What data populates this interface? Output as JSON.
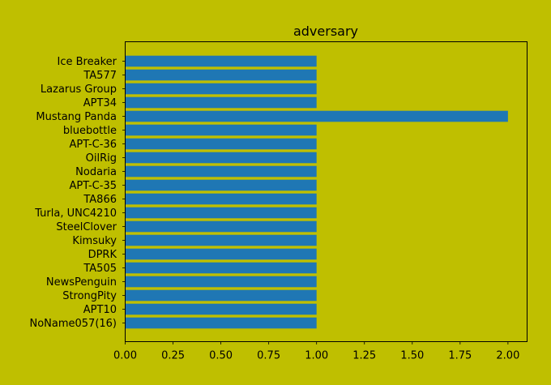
{
  "colors": {
    "background": "#bfbf00",
    "bar": "#1f77b4",
    "axes": "#000000"
  },
  "chart_data": {
    "type": "bar",
    "orientation": "horizontal",
    "title": "adversary",
    "xlabel": "",
    "ylabel": "",
    "categories": [
      "Ice Breaker",
      "TA577",
      "Lazarus Group",
      "APT34",
      "Mustang Panda",
      "bluebottle",
      "APT-C-36",
      "OilRig",
      "Nodaria",
      "APT-C-35",
      "TA866",
      "Turla, UNC4210",
      "SteelClover",
      "Kimsuky",
      "DPRK",
      "TA505",
      "NewsPenguin",
      "StrongPity",
      "APT10",
      "NoName057(16)"
    ],
    "values": [
      1,
      1,
      1,
      1,
      2,
      1,
      1,
      1,
      1,
      1,
      1,
      1,
      1,
      1,
      1,
      1,
      1,
      1,
      1,
      1
    ],
    "xlim": [
      0,
      2.1
    ],
    "xticks": [
      "0.00",
      "0.25",
      "0.50",
      "0.75",
      "1.00",
      "1.25",
      "1.50",
      "1.75",
      "2.00"
    ],
    "grid": false,
    "legend": "none"
  }
}
